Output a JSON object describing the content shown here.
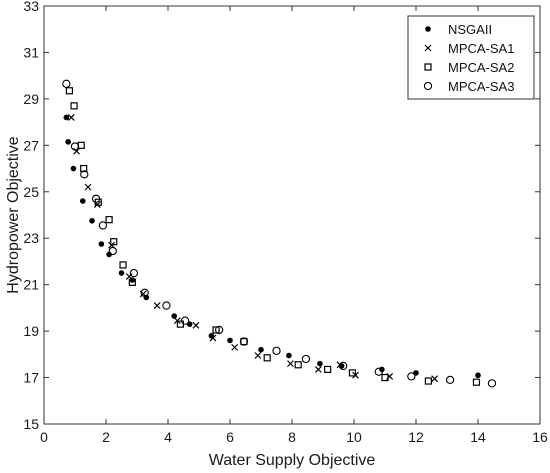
{
  "chart_data": {
    "type": "scatter",
    "title": "",
    "xlabel": "Water Supply Objective",
    "ylabel": "Hydropower Objective",
    "xlim": [
      0,
      16
    ],
    "ylim": [
      15,
      33
    ],
    "xticks": [
      0,
      2,
      4,
      6,
      8,
      10,
      12,
      14,
      16
    ],
    "yticks": [
      15,
      17,
      19,
      21,
      23,
      25,
      27,
      29,
      31,
      33
    ],
    "grid": false,
    "legend_position": "top-right",
    "series": [
      {
        "name": "NSGAII",
        "marker": "filled-circle",
        "color": "#000000",
        "points": [
          [
            0.72,
            28.2
          ],
          [
            0.78,
            27.15
          ],
          [
            0.95,
            26.0
          ],
          [
            1.25,
            24.6
          ],
          [
            1.55,
            23.75
          ],
          [
            1.85,
            22.75
          ],
          [
            2.1,
            22.3
          ],
          [
            2.5,
            21.5
          ],
          [
            2.85,
            21.2
          ],
          [
            3.3,
            20.45
          ],
          [
            4.2,
            19.65
          ],
          [
            4.7,
            19.3
          ],
          [
            5.4,
            18.8
          ],
          [
            6.0,
            18.6
          ],
          [
            7.0,
            18.2
          ],
          [
            7.9,
            17.95
          ],
          [
            8.9,
            17.6
          ],
          [
            9.6,
            17.5
          ],
          [
            10.9,
            17.35
          ],
          [
            12.0,
            17.2
          ],
          [
            14.0,
            17.1
          ]
        ]
      },
      {
        "name": "MPCA-SA1",
        "marker": "x",
        "color": "#000000",
        "points": [
          [
            0.88,
            28.2
          ],
          [
            1.05,
            26.75
          ],
          [
            1.42,
            25.2
          ],
          [
            1.72,
            24.45
          ],
          [
            2.18,
            22.7
          ],
          [
            2.75,
            21.35
          ],
          [
            3.2,
            20.6
          ],
          [
            3.65,
            20.1
          ],
          [
            4.3,
            19.45
          ],
          [
            4.9,
            19.25
          ],
          [
            5.45,
            18.7
          ],
          [
            6.15,
            18.3
          ],
          [
            6.9,
            17.95
          ],
          [
            7.95,
            17.6
          ],
          [
            8.85,
            17.35
          ],
          [
            9.55,
            17.55
          ],
          [
            10.05,
            17.1
          ],
          [
            11.15,
            17.05
          ],
          [
            12.6,
            16.95
          ]
        ]
      },
      {
        "name": "MPCA-SA2",
        "marker": "open-square",
        "color": "#000000",
        "points": [
          [
            0.82,
            29.35
          ],
          [
            0.97,
            28.7
          ],
          [
            1.2,
            27.0
          ],
          [
            1.28,
            26.0
          ],
          [
            1.75,
            24.55
          ],
          [
            2.1,
            23.8
          ],
          [
            2.25,
            22.85
          ],
          [
            2.55,
            21.85
          ],
          [
            2.85,
            21.1
          ],
          [
            4.4,
            19.3
          ],
          [
            5.55,
            19.05
          ],
          [
            6.45,
            18.55
          ],
          [
            7.2,
            17.85
          ],
          [
            8.2,
            17.55
          ],
          [
            9.15,
            17.35
          ],
          [
            9.95,
            17.2
          ],
          [
            11.0,
            17.0
          ],
          [
            12.4,
            16.85
          ],
          [
            13.95,
            16.8
          ]
        ]
      },
      {
        "name": "MPCA-SA3",
        "marker": "open-circle",
        "color": "#000000",
        "points": [
          [
            0.72,
            29.65
          ],
          [
            1.0,
            26.95
          ],
          [
            1.3,
            25.75
          ],
          [
            1.68,
            24.7
          ],
          [
            1.9,
            23.55
          ],
          [
            2.22,
            22.45
          ],
          [
            2.9,
            21.5
          ],
          [
            3.25,
            20.65
          ],
          [
            3.95,
            20.1
          ],
          [
            4.55,
            19.45
          ],
          [
            5.65,
            19.05
          ],
          [
            6.45,
            18.55
          ],
          [
            7.5,
            18.15
          ],
          [
            8.45,
            17.8
          ],
          [
            9.65,
            17.5
          ],
          [
            10.8,
            17.25
          ],
          [
            11.85,
            17.05
          ],
          [
            13.1,
            16.9
          ],
          [
            14.45,
            16.75
          ]
        ]
      }
    ]
  }
}
